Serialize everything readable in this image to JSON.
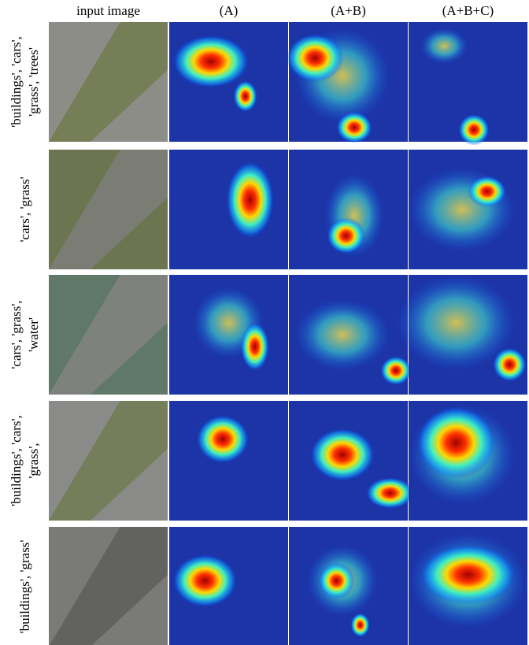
{
  "header": {
    "columns": [
      "input image",
      "(A)",
      "(A+B)",
      "(A+B+C)"
    ]
  },
  "rows": [
    {
      "label": [
        "'buildings', 'cars',",
        "'grass', 'trees'"
      ]
    },
    {
      "label": [
        "'cars', 'grass'"
      ]
    },
    {
      "label": [
        "'cars', 'grass',",
        "'water'"
      ]
    },
    {
      "label": [
        "'buildings', 'cars',",
        "'grass',"
      ]
    },
    {
      "label": [
        "'buildings', 'grass'"
      ]
    }
  ]
}
